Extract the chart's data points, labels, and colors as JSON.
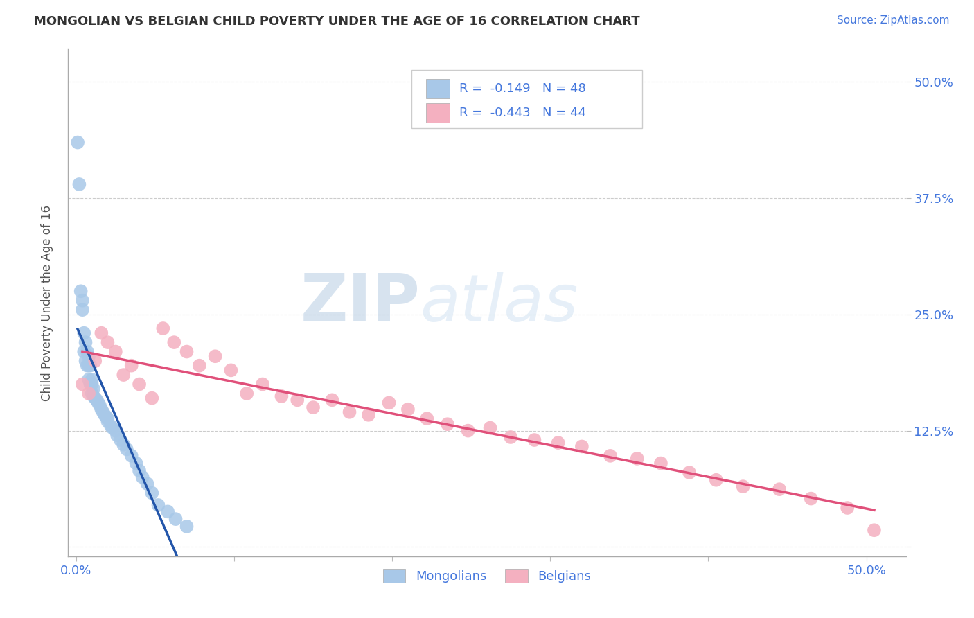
{
  "title": "MONGOLIAN VS BELGIAN CHILD POVERTY UNDER THE AGE OF 16 CORRELATION CHART",
  "source": "Source: ZipAtlas.com",
  "ylabel": "Child Poverty Under the Age of 16",
  "x_ticks": [
    0.0,
    0.1,
    0.2,
    0.3,
    0.4,
    0.5
  ],
  "y_ticks": [
    0.0,
    0.125,
    0.25,
    0.375,
    0.5
  ],
  "xlim": [
    -0.005,
    0.525
  ],
  "ylim": [
    -0.01,
    0.535
  ],
  "legend_labels": [
    "Mongolians",
    "Belgians"
  ],
  "mongolian_color": "#a8c8e8",
  "belgian_color": "#f4b0c0",
  "mongolian_line_color": "#2255aa",
  "belgian_line_color": "#e0507a",
  "R_mongolian": -0.149,
  "N_mongolian": 48,
  "R_belgian": -0.443,
  "N_belgian": 44,
  "stat_text_color": "#4477dd",
  "watermark_color": "#ccddef",
  "background_color": "#ffffff",
  "grid_color": "#cccccc",
  "mongolian_x": [
    0.001,
    0.002,
    0.003,
    0.004,
    0.004,
    0.005,
    0.005,
    0.006,
    0.006,
    0.007,
    0.007,
    0.008,
    0.008,
    0.008,
    0.009,
    0.009,
    0.01,
    0.01,
    0.01,
    0.011,
    0.011,
    0.012,
    0.013,
    0.014,
    0.015,
    0.016,
    0.017,
    0.018,
    0.019,
    0.02,
    0.02,
    0.022,
    0.023,
    0.025,
    0.026,
    0.028,
    0.03,
    0.032,
    0.035,
    0.038,
    0.04,
    0.042,
    0.045,
    0.048,
    0.052,
    0.058,
    0.063,
    0.07
  ],
  "mongolian_y": [
    0.435,
    0.39,
    0.275,
    0.265,
    0.255,
    0.23,
    0.21,
    0.22,
    0.2,
    0.21,
    0.195,
    0.205,
    0.195,
    0.18,
    0.195,
    0.175,
    0.18,
    0.175,
    0.165,
    0.17,
    0.162,
    0.16,
    0.158,
    0.155,
    0.152,
    0.148,
    0.145,
    0.142,
    0.14,
    0.138,
    0.135,
    0.13,
    0.128,
    0.125,
    0.12,
    0.115,
    0.11,
    0.105,
    0.098,
    0.09,
    0.082,
    0.075,
    0.068,
    0.058,
    0.045,
    0.038,
    0.03,
    0.022
  ],
  "belgian_x": [
    0.004,
    0.008,
    0.012,
    0.016,
    0.02,
    0.025,
    0.03,
    0.035,
    0.04,
    0.048,
    0.055,
    0.062,
    0.07,
    0.078,
    0.088,
    0.098,
    0.108,
    0.118,
    0.13,
    0.14,
    0.15,
    0.162,
    0.173,
    0.185,
    0.198,
    0.21,
    0.222,
    0.235,
    0.248,
    0.262,
    0.275,
    0.29,
    0.305,
    0.32,
    0.338,
    0.355,
    0.37,
    0.388,
    0.405,
    0.422,
    0.445,
    0.465,
    0.488,
    0.505
  ],
  "belgian_y": [
    0.175,
    0.165,
    0.2,
    0.23,
    0.22,
    0.21,
    0.185,
    0.195,
    0.175,
    0.16,
    0.235,
    0.22,
    0.21,
    0.195,
    0.205,
    0.19,
    0.165,
    0.175,
    0.162,
    0.158,
    0.15,
    0.158,
    0.145,
    0.142,
    0.155,
    0.148,
    0.138,
    0.132,
    0.125,
    0.128,
    0.118,
    0.115,
    0.112,
    0.108,
    0.098,
    0.095,
    0.09,
    0.08,
    0.072,
    0.065,
    0.062,
    0.052,
    0.042,
    0.018
  ]
}
